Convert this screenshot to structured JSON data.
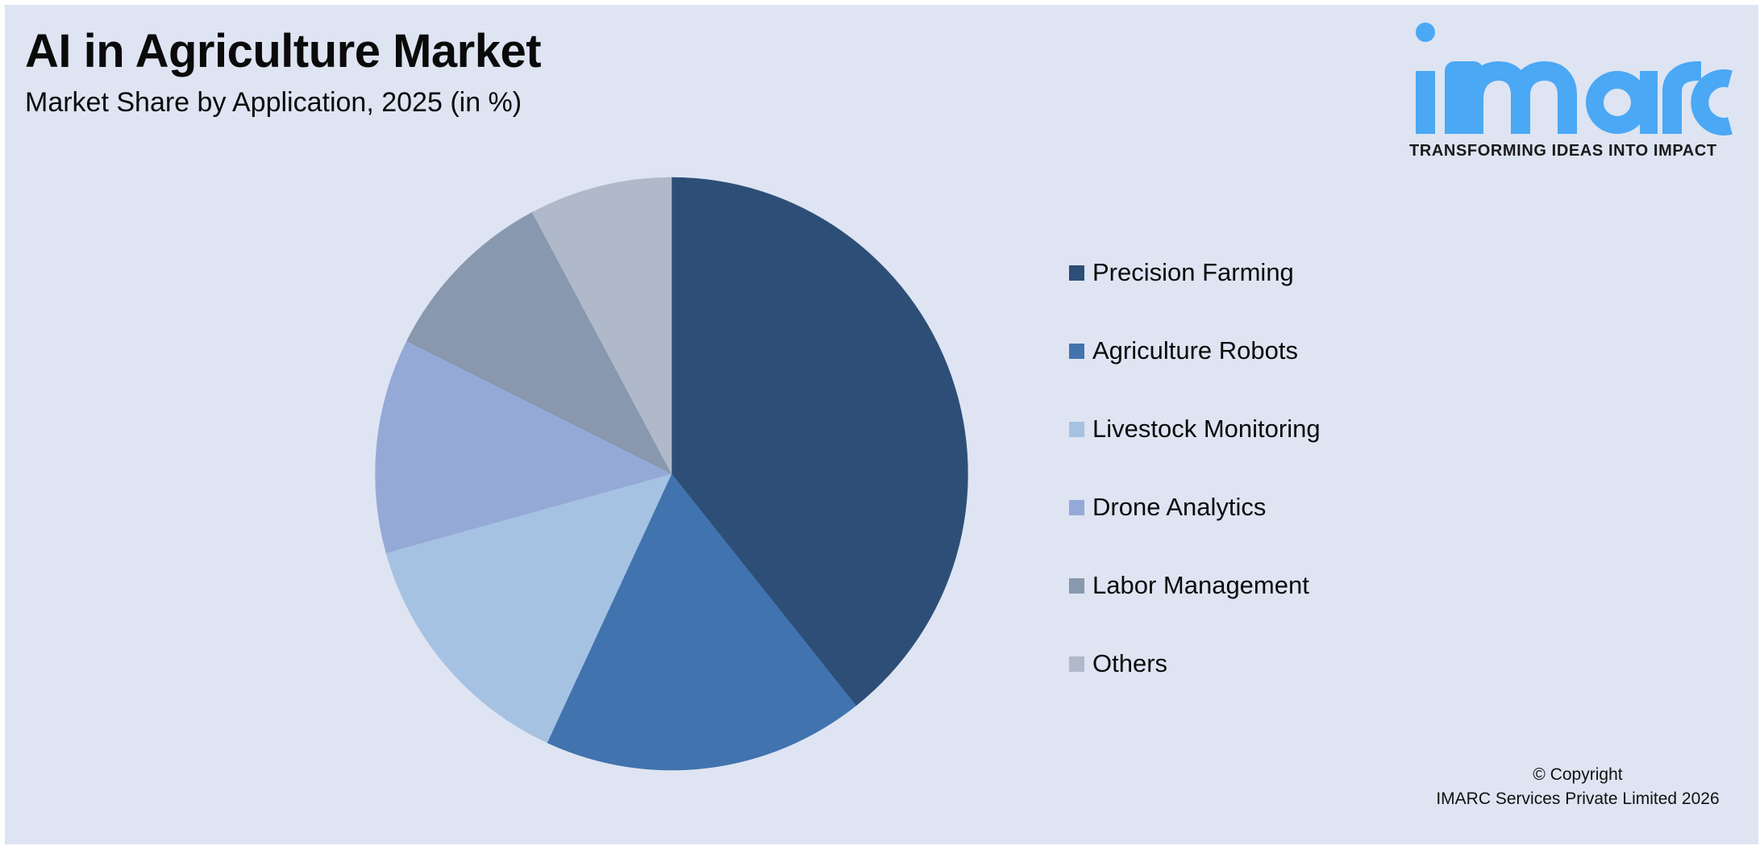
{
  "header": {
    "title": "AI in Agriculture Market",
    "subtitle": "Market Share by Application, 2025 (in %)"
  },
  "logo": {
    "wordmark": "imarc",
    "tagline": "TRANSFORMING IDEAS INTO IMPACT",
    "color": "#4aa8f5"
  },
  "legend": {
    "items": [
      {
        "label": "Precision Farming",
        "color": "#2d4f77"
      },
      {
        "label": "Agriculture Robots",
        "color": "#4173ae"
      },
      {
        "label": "Livestock Monitoring",
        "color": "#a6c2e2"
      },
      {
        "label": "Drone Analytics",
        "color": "#95a9d7"
      },
      {
        "label": "Labor Management",
        "color": "#8898ae"
      },
      {
        "label": "Others",
        "color": "#afb9c9"
      }
    ]
  },
  "footer": {
    "copyright_line1": "© Copyright",
    "copyright_line2": "IMARC Services Private Limited 2026"
  },
  "chart_data": {
    "type": "pie",
    "title": "AI in Agriculture Market",
    "subtitle": "Market Share by Application, 2025 (in %)",
    "categories": [
      "Precision Farming",
      "Agriculture Robots",
      "Livestock Monitoring",
      "Drone Analytics",
      "Labor Management",
      "Others"
    ],
    "values": [
      39.3,
      17.6,
      13.8,
      11.7,
      9.8,
      7.8
    ],
    "colors": [
      "#2d4f77",
      "#4173ae",
      "#a6c2e2",
      "#95a9d7",
      "#8898ae",
      "#afb9c9"
    ],
    "unit": "%",
    "start_angle": "12 o'clock",
    "direction": "clockwise",
    "data_labels": false,
    "legend_position": "right"
  }
}
